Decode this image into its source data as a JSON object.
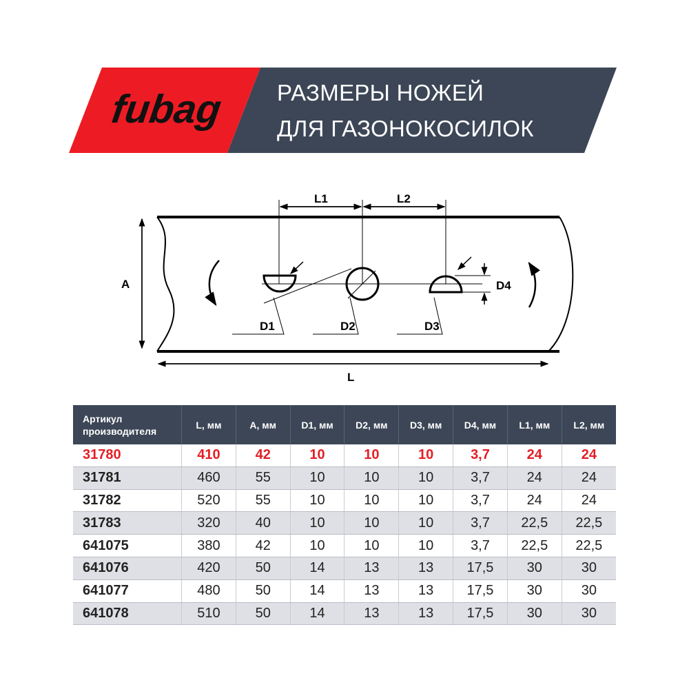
{
  "brand": {
    "logo_text": "fubag",
    "red": "#ed1c24",
    "dark": "#3c4656"
  },
  "header": {
    "title_line1": "РАЗМЕРЫ НОЖЕЙ",
    "title_line2": "ДЛЯ ГАЗОНОКОСИЛОК"
  },
  "diagram": {
    "labels": {
      "L1": "L1",
      "L2": "L2",
      "A": "A",
      "L": "L",
      "D1": "D1",
      "D2": "D2",
      "D3": "D3",
      "D4": "D4"
    }
  },
  "table": {
    "headers": [
      "Артикул производителя",
      "L, мм",
      "A, мм",
      "D1, мм",
      "D2, мм",
      "D3, мм",
      "D4, мм",
      "L1, мм",
      "L2, мм"
    ],
    "highlight_color": "#e31e25",
    "rows": [
      [
        "31780",
        "410",
        "42",
        "10",
        "10",
        "10",
        "3,7",
        "24",
        "24"
      ],
      [
        "31781",
        "460",
        "55",
        "10",
        "10",
        "10",
        "3,7",
        "24",
        "24"
      ],
      [
        "31782",
        "520",
        "55",
        "10",
        "10",
        "10",
        "3,7",
        "24",
        "24"
      ],
      [
        "31783",
        "320",
        "40",
        "10",
        "10",
        "10",
        "3,7",
        "22,5",
        "22,5"
      ],
      [
        "641075",
        "380",
        "42",
        "10",
        "10",
        "10",
        "3,7",
        "22,5",
        "22,5"
      ],
      [
        "641076",
        "420",
        "50",
        "14",
        "13",
        "13",
        "17,5",
        "30",
        "30"
      ],
      [
        "641077",
        "480",
        "50",
        "14",
        "13",
        "13",
        "17,5",
        "30",
        "30"
      ],
      [
        "641078",
        "510",
        "50",
        "14",
        "13",
        "13",
        "17,5",
        "30",
        "30"
      ]
    ]
  }
}
